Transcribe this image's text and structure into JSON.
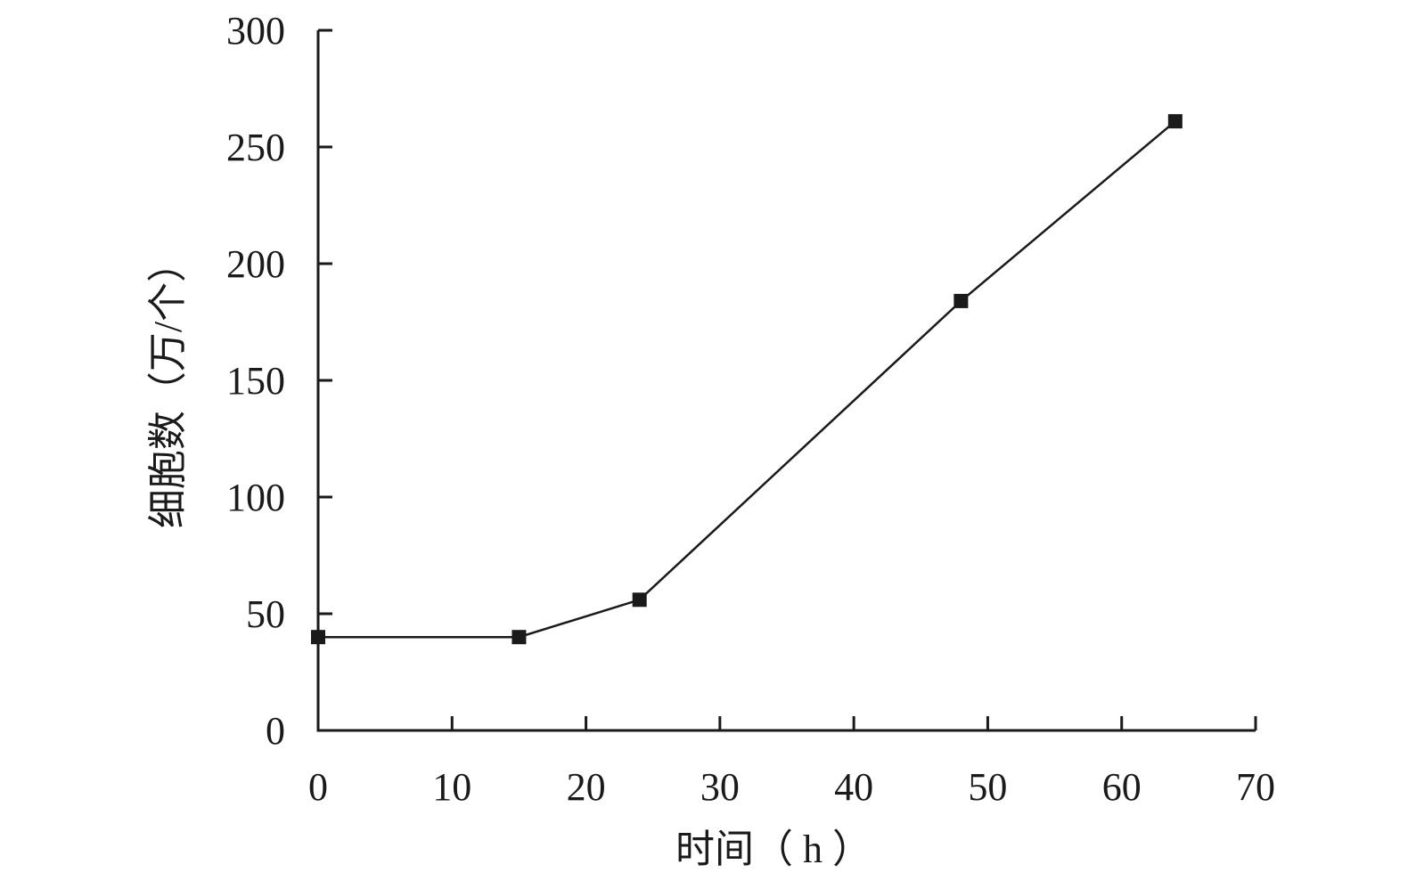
{
  "chart_data": {
    "type": "line",
    "title": "",
    "xlabel": "时间（ h ）",
    "ylabel": "细胞数（万/个）",
    "xlim": [
      0,
      70
    ],
    "ylim": [
      0,
      300
    ],
    "xticks": [
      0,
      10,
      20,
      30,
      40,
      50,
      60,
      70
    ],
    "yticks": [
      0,
      50,
      100,
      150,
      200,
      250,
      300
    ],
    "grid": false,
    "legend": "none",
    "series": [
      {
        "marker": "square",
        "color": "#1a1a1a",
        "x": [
          0,
          15,
          24,
          48,
          64
        ],
        "y": [
          40,
          40,
          56,
          184,
          261
        ]
      }
    ]
  }
}
